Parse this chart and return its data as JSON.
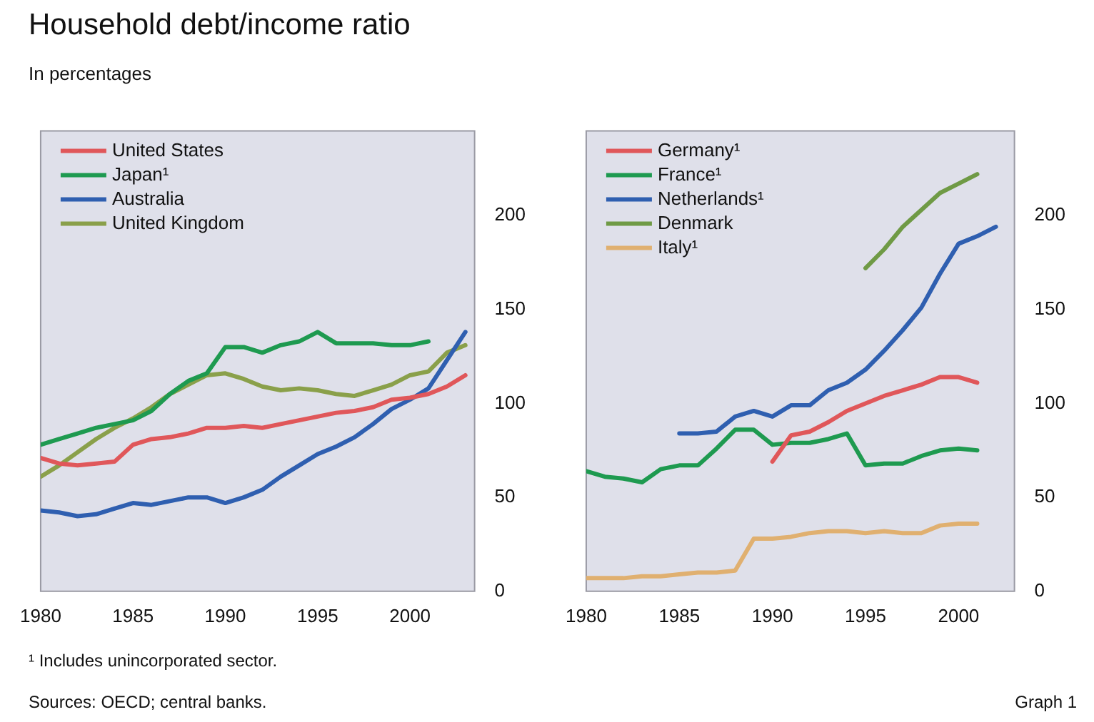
{
  "chart_data": [
    {
      "type": "line",
      "title": "Household debt/income ratio",
      "subtitle": "In percentages",
      "annotations": [
        "¹ Includes unincorporated sector.",
        "Sources: OECD; central banks.",
        "Graph 1"
      ],
      "x": [
        1980,
        1981,
        1982,
        1983,
        1984,
        1985,
        1986,
        1987,
        1988,
        1989,
        1990,
        1991,
        1992,
        1993,
        1994,
        1995,
        1996,
        1997,
        1998,
        1999,
        2000,
        2001,
        2002,
        2003
      ],
      "xlim": [
        1980,
        2003.5
      ],
      "xticks": [
        1980,
        1985,
        1990,
        1995,
        2000
      ],
      "ylim": [
        0,
        245
      ],
      "yticks": [
        0,
        50,
        100,
        150,
        200
      ],
      "legend": "top left",
      "series": [
        {
          "name": "United States",
          "color": "#e0575a",
          "values": [
            71,
            68,
            67,
            68,
            69,
            78,
            81,
            82,
            84,
            87,
            87,
            88,
            87,
            89,
            91,
            93,
            95,
            96,
            98,
            102,
            103,
            105,
            109,
            115
          ]
        },
        {
          "name": "Japan¹",
          "color": "#1e9a50",
          "values": [
            78,
            81,
            84,
            87,
            89,
            91,
            96,
            105,
            112,
            116,
            130,
            130,
            127,
            131,
            133,
            138,
            132,
            132,
            132,
            131,
            131,
            133,
            null,
            null
          ]
        },
        {
          "name": "Australia",
          "color": "#2f5fb0",
          "values": [
            43,
            42,
            40,
            41,
            44,
            47,
            46,
            48,
            50,
            50,
            47,
            50,
            54,
            61,
            67,
            73,
            77,
            82,
            89,
            97,
            102,
            108,
            123,
            138
          ]
        },
        {
          "name": "United Kingdom",
          "color": "#8aa04a",
          "values": [
            61,
            67,
            74,
            81,
            87,
            92,
            98,
            105,
            110,
            115,
            116,
            113,
            109,
            107,
            108,
            107,
            105,
            104,
            107,
            110,
            115,
            117,
            127,
            131
          ]
        }
      ]
    },
    {
      "type": "line",
      "x": [
        1980,
        1981,
        1982,
        1983,
        1984,
        1985,
        1986,
        1987,
        1988,
        1989,
        1990,
        1991,
        1992,
        1993,
        1994,
        1995,
        1996,
        1997,
        1998,
        1999,
        2000,
        2001,
        2002
      ],
      "xlim": [
        1980,
        2003
      ],
      "xticks": [
        1980,
        1985,
        1990,
        1995,
        2000
      ],
      "ylim": [
        0,
        245
      ],
      "yticks": [
        0,
        50,
        100,
        150,
        200
      ],
      "legend": "top left",
      "series": [
        {
          "name": "Germany¹",
          "color": "#e0575a",
          "values": [
            null,
            null,
            null,
            null,
            null,
            null,
            null,
            null,
            null,
            null,
            69,
            83,
            85,
            90,
            96,
            100,
            104,
            107,
            110,
            114,
            114,
            111,
            null
          ]
        },
        {
          "name": "France¹",
          "color": "#1e9a50",
          "values": [
            64,
            61,
            60,
            58,
            65,
            67,
            67,
            76,
            86,
            86,
            78,
            79,
            79,
            81,
            84,
            67,
            68,
            68,
            72,
            75,
            76,
            75,
            null
          ]
        },
        {
          "name": "Netherlands¹",
          "color": "#2f5fb0",
          "values": [
            null,
            null,
            null,
            null,
            null,
            84,
            84,
            85,
            93,
            96,
            93,
            99,
            99,
            107,
            111,
            118,
            128,
            139,
            151,
            169,
            185,
            189,
            194
          ]
        },
        {
          "name": "Denmark",
          "color": "#6f9a45",
          "values": [
            null,
            null,
            null,
            null,
            null,
            null,
            null,
            null,
            null,
            null,
            null,
            null,
            null,
            null,
            null,
            172,
            182,
            194,
            203,
            212,
            217,
            222,
            null
          ]
        },
        {
          "name": "Italy¹",
          "color": "#e0b070",
          "values": [
            7,
            7,
            7,
            8,
            8,
            9,
            10,
            10,
            11,
            28,
            28,
            29,
            31,
            32,
            32,
            31,
            32,
            31,
            31,
            35,
            36,
            36,
            null
          ]
        }
      ]
    }
  ]
}
